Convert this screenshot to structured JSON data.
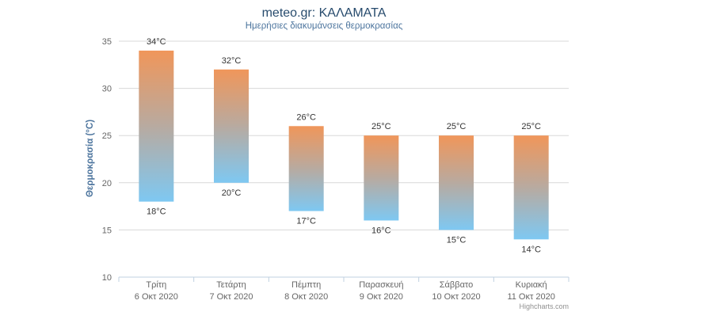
{
  "chart_data": {
    "type": "bar",
    "title": "meteo.gr: ΚΑΛΑΜΑΤΑ",
    "subtitle": "Ημερήσιες διακυμάνσεις θερμοκρασίας",
    "ylabel": "Θερμοκρασία (°C)",
    "ylim": [
      10,
      35
    ],
    "yticks": [
      10,
      15,
      20,
      25,
      30,
      35
    ],
    "categories": [
      [
        "Τρίτη",
        "6 Οκτ 2020"
      ],
      [
        "Τετάρτη",
        "7 Οκτ 2020"
      ],
      [
        "Πέμπτη",
        "8 Οκτ 2020"
      ],
      [
        "Παρασκευή",
        "9 Οκτ 2020"
      ],
      [
        "Σάββατο",
        "10 Οκτ 2020"
      ],
      [
        "Κυριακή",
        "11 Οκτ 2020"
      ]
    ],
    "high": [
      34,
      32,
      26,
      25,
      25,
      25
    ],
    "low": [
      18,
      20,
      17,
      16,
      15,
      14
    ],
    "high_labels": [
      "34°C",
      "32°C",
      "26°C",
      "25°C",
      "25°C",
      "25°C"
    ],
    "low_labels": [
      "18°C",
      "20°C",
      "17°C",
      "16°C",
      "15°C",
      "14°C"
    ],
    "colors": {
      "warm": "#f0965a",
      "cool": "#7ec8f2",
      "grid": "#d8d8d8",
      "axis": "#c0d0e0"
    },
    "grid": true,
    "legend": "none"
  },
  "credits": "Highcharts.com"
}
